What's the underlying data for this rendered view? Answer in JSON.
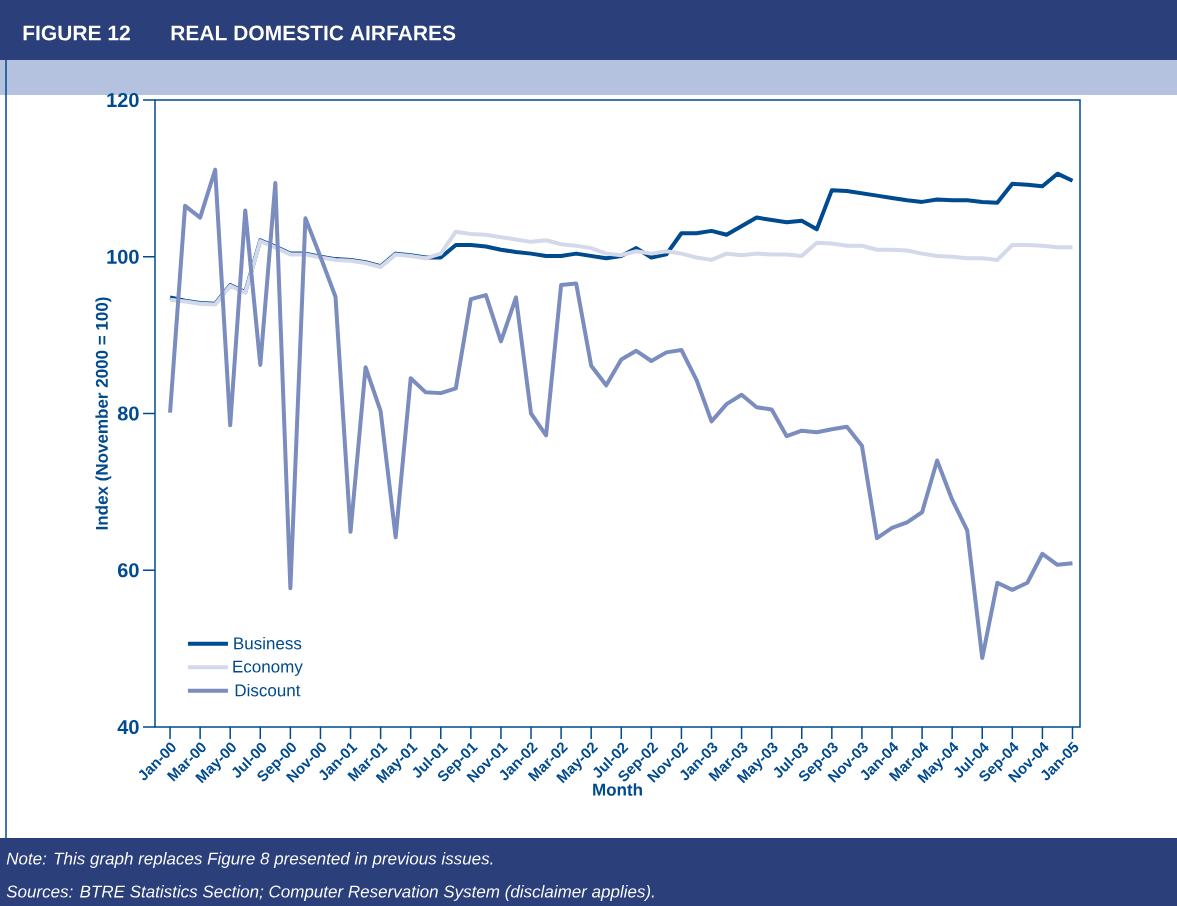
{
  "chart_data": {
    "type": "line",
    "title": "REAL DOMESTIC AIRFARES",
    "subtitle": "FIGURE 12",
    "xlabel": "Month",
    "ylabel": "Index (November 2000 = 100)",
    "categories": [
      "Jan-00",
      null,
      "Mar-00",
      null,
      "May-00",
      null,
      "Jul-00",
      null,
      "Sep-00",
      null,
      "Nov-00",
      null,
      "Jan-01",
      null,
      "Mar-01",
      null,
      "May-01",
      null,
      "Jul-01",
      null,
      "Sep-01",
      null,
      "Nov-01",
      null,
      "Jan-02",
      null,
      "Mar-02",
      null,
      "May-02",
      null,
      "Jul-02",
      null,
      "Sep-02",
      null,
      "Nov-02",
      null,
      "Jan-03",
      null,
      "Mar-03",
      null,
      "May-03",
      null,
      "Jul-03",
      null,
      "Sep-03",
      null,
      "Nov-03",
      null,
      "Jan-04",
      null,
      "Mar-04",
      null,
      "May-04",
      null,
      "Jul-04",
      null,
      "Sep-04",
      null,
      "Nov-04",
      null,
      "Jan-05"
    ],
    "series": [
      {
        "name": "Business",
        "color": "#004a8f",
        "values": [
          94.8,
          94.4,
          94.1,
          94.0,
          96.4,
          95.5,
          102.1,
          101.3,
          100.4,
          100.4,
          100.0,
          99.7,
          99.6,
          99.3,
          98.8,
          100.4,
          100.2,
          99.9,
          99.9,
          101.5,
          101.5,
          101.3,
          100.9,
          100.6,
          100.4,
          100.1,
          100.1,
          100.4,
          100.1,
          99.8,
          100.1,
          101.1,
          99.9,
          100.3,
          103.0,
          103.0,
          103.3,
          102.8,
          103.9,
          105.0,
          104.7,
          104.4,
          104.6,
          103.5,
          108.5,
          108.4,
          108.1,
          107.8,
          107.5,
          107.2,
          107.0,
          107.3,
          107.2,
          107.2,
          107.0,
          106.9,
          109.3,
          109.2,
          109.0,
          110.6,
          109.7
        ]
      },
      {
        "name": "Economy",
        "color": "#d3d9ea",
        "values": [
          94.5,
          94.3,
          94.0,
          93.9,
          96.3,
          95.4,
          102.0,
          101.2,
          100.3,
          100.3,
          99.9,
          99.6,
          99.5,
          99.2,
          98.7,
          100.3,
          100.1,
          99.8,
          100.4,
          103.2,
          102.9,
          102.8,
          102.5,
          102.2,
          101.9,
          102.1,
          101.6,
          101.4,
          101.1,
          100.4,
          100.2,
          100.7,
          100.4,
          100.7,
          100.4,
          99.9,
          99.6,
          100.4,
          100.2,
          100.4,
          100.3,
          100.3,
          100.1,
          101.8,
          101.7,
          101.4,
          101.4,
          100.9,
          100.9,
          100.8,
          100.4,
          100.1,
          100.0,
          99.8,
          99.8,
          99.6,
          101.5,
          101.5,
          101.4,
          101.2,
          101.2
        ]
      },
      {
        "name": "Discount",
        "color": "#7b8dbf",
        "values": [
          80.1,
          106.5,
          105.0,
          111.1,
          78.5,
          105.9,
          86.2,
          109.4,
          57.7,
          104.9,
          100.0,
          94.9,
          64.9,
          85.9,
          80.3,
          64.2,
          84.5,
          82.7,
          82.6,
          83.2,
          94.6,
          95.1,
          89.2,
          94.8,
          80.0,
          77.2,
          96.4,
          96.6,
          86.1,
          83.6,
          86.9,
          88.0,
          86.7,
          87.8,
          88.1,
          84.3,
          79.0,
          81.2,
          82.4,
          80.8,
          80.5,
          77.1,
          77.8,
          77.6,
          78.0,
          78.3,
          75.9,
          64.1,
          65.4,
          66.1,
          67.4,
          74.0,
          69.0,
          65.1,
          48.8,
          58.4,
          57.5,
          58.4,
          62.1,
          60.7,
          60.9
        ]
      }
    ],
    "ylim": [
      40,
      120
    ],
    "yticks": [
      40,
      60,
      80,
      100,
      120
    ],
    "legend": "bottom left",
    "marker": "none",
    "line_style": "solid",
    "annotations": [
      "Note:  This graph replaces Figure 8 presented in previous issues.",
      "Sources: BTRE Statistics Section; Computer Reservation System (disclaimer applies)."
    ]
  }
}
